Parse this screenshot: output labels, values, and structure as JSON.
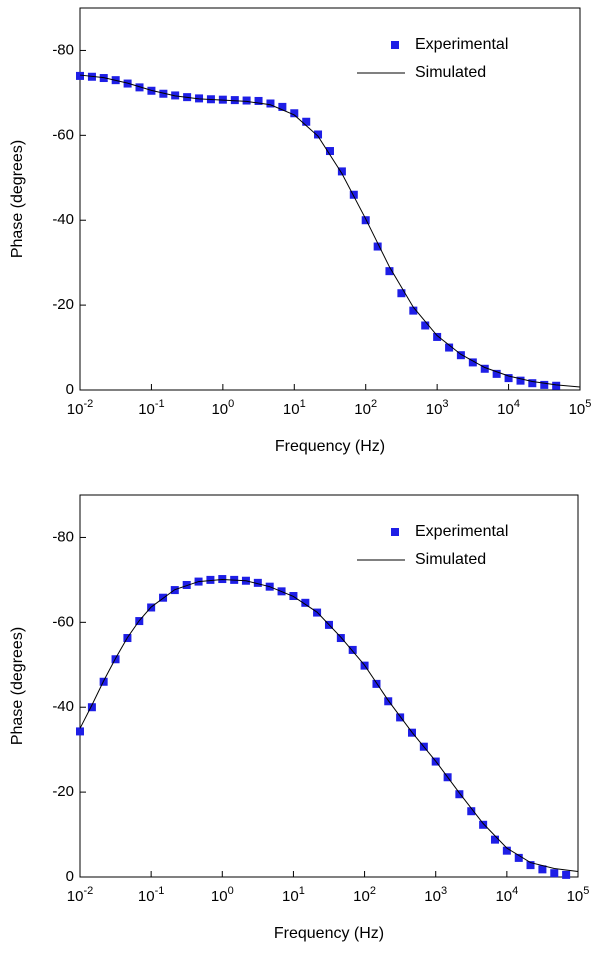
{
  "chart_data": [
    {
      "type": "scatter-line",
      "xlabel": "Frequency (Hz)",
      "ylabel": "Phase (degrees)",
      "xscale": "log",
      "xlim": [
        0.01,
        100000
      ],
      "xticks": [
        {
          "value": 0.01,
          "label": "10-2"
        },
        {
          "value": 0.1,
          "label": "10-1"
        },
        {
          "value": 1,
          "label": "100"
        },
        {
          "value": 10,
          "label": "101"
        },
        {
          "value": 100,
          "label": "102"
        },
        {
          "value": 1000,
          "label": "103"
        },
        {
          "value": 10000,
          "label": "104"
        },
        {
          "value": 100000,
          "label": "105"
        }
      ],
      "ylim": [
        0,
        -90
      ],
      "yticks": [
        0,
        -20,
        -40,
        -60,
        -80
      ],
      "legend": "upper right",
      "series": [
        {
          "name": "Experimental",
          "kind": "marker",
          "color": "#1e1ee6",
          "x": [
            0.01,
            0.0147,
            0.0215,
            0.0316,
            0.0464,
            0.0681,
            0.1,
            0.147,
            0.215,
            0.316,
            0.464,
            0.681,
            1,
            1.47,
            2.15,
            3.16,
            4.64,
            6.81,
            10,
            14.7,
            21.5,
            31.6,
            46.4,
            68.1,
            100,
            147,
            215,
            316,
            464,
            681,
            1000,
            1470,
            2150,
            3160,
            4640,
            6810,
            10000,
            14700,
            21500,
            31600,
            46400
          ],
          "values": [
            -74,
            -73.8,
            -73.5,
            -73,
            -72.2,
            -71.3,
            -70.5,
            -69.8,
            -69.4,
            -69,
            -68.7,
            -68.5,
            -68.4,
            -68.3,
            -68.2,
            -68.1,
            -67.5,
            -66.7,
            -65.2,
            -63.2,
            -60.2,
            -56.3,
            -51.5,
            -46,
            -40,
            -33.8,
            -28,
            -22.8,
            -18.7,
            -15.2,
            -12.5,
            -10,
            -8.2,
            -6.5,
            -5,
            -3.8,
            -2.8,
            -2.2,
            -1.6,
            -1.2,
            -1
          ]
        },
        {
          "name": "Simulated",
          "kind": "line",
          "color": "#000000",
          "x": [
            0.01,
            0.0215,
            0.0464,
            0.1,
            0.215,
            0.464,
            1,
            2.15,
            4.64,
            10,
            21.5,
            46.4,
            100,
            215,
            464,
            1000,
            2150,
            4640,
            10000,
            21500,
            46400,
            100000
          ],
          "values": [
            -74.2,
            -73.6,
            -72.3,
            -70.6,
            -69.3,
            -68.6,
            -68.3,
            -68,
            -67.2,
            -64.8,
            -59.8,
            -51,
            -40.3,
            -29,
            -19.5,
            -12.8,
            -8.4,
            -5.3,
            -3.3,
            -2,
            -1.2,
            -0.7
          ]
        }
      ]
    },
    {
      "type": "scatter-line",
      "xlabel": "Frequency (Hz)",
      "ylabel": "Phase (degrees)",
      "xscale": "log",
      "xlim": [
        0.01,
        100000
      ],
      "xticks": [
        {
          "value": 0.01,
          "label": "10-2"
        },
        {
          "value": 0.1,
          "label": "10-1"
        },
        {
          "value": 1,
          "label": "100"
        },
        {
          "value": 10,
          "label": "101"
        },
        {
          "value": 100,
          "label": "102"
        },
        {
          "value": 1000,
          "label": "103"
        },
        {
          "value": 10000,
          "label": "104"
        },
        {
          "value": 100000,
          "label": "105"
        }
      ],
      "ylim": [
        0,
        -90
      ],
      "yticks": [
        0,
        -20,
        -40,
        -60,
        -80
      ],
      "legend": "upper right",
      "series": [
        {
          "name": "Experimental",
          "kind": "marker",
          "color": "#1e1ee6",
          "x": [
            0.01,
            0.0147,
            0.0215,
            0.0316,
            0.0464,
            0.0681,
            0.1,
            0.147,
            0.215,
            0.316,
            0.464,
            0.681,
            1,
            1.47,
            2.15,
            3.16,
            4.64,
            6.81,
            10,
            14.7,
            21.5,
            31.6,
            46.4,
            68.1,
            100,
            147,
            215,
            316,
            464,
            681,
            1000,
            1470,
            2150,
            3160,
            4640,
            6810,
            10000,
            14700,
            21500,
            31600,
            46400,
            68100
          ],
          "values": [
            -34.3,
            -40,
            -46,
            -51.3,
            -56.3,
            -60.3,
            -63.5,
            -65.8,
            -67.6,
            -68.8,
            -69.6,
            -70,
            -70.2,
            -70,
            -69.8,
            -69.3,
            -68.4,
            -67.3,
            -66.2,
            -64.6,
            -62.3,
            -59.4,
            -56.3,
            -53.5,
            -49.8,
            -45.5,
            -41.4,
            -37.6,
            -34,
            -30.7,
            -27.2,
            -23.5,
            -19.5,
            -15.5,
            -12.3,
            -8.8,
            -6.2,
            -4.5,
            -2.8,
            -1.8,
            -0.9,
            -0.5
          ]
        },
        {
          "name": "Simulated",
          "kind": "line",
          "color": "#000000",
          "x": [
            0.01,
            0.0147,
            0.0215,
            0.0316,
            0.0464,
            0.0681,
            0.1,
            0.215,
            0.464,
            1,
            2.15,
            4.64,
            10,
            21.5,
            46.4,
            100,
            215,
            464,
            1000,
            2150,
            4640,
            10000,
            21500,
            46400,
            100000
          ],
          "values": [
            -35,
            -40.5,
            -46.2,
            -51.5,
            -56.4,
            -60.4,
            -63.6,
            -67.7,
            -69.6,
            -70.1,
            -69.8,
            -68.4,
            -66.1,
            -62.4,
            -56.5,
            -49.9,
            -41.6,
            -34.1,
            -27.3,
            -19.8,
            -12.6,
            -6.8,
            -3.4,
            -2,
            -1.3
          ]
        }
      ]
    }
  ]
}
